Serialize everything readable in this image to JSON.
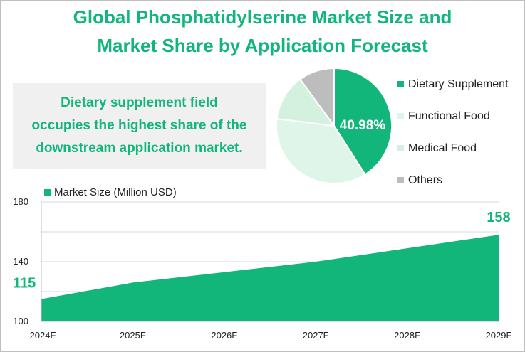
{
  "title": {
    "line1": "Global Phosphatidylserine Market Size and",
    "line2": "Market Share by Application Forecast"
  },
  "callout": {
    "line1": "Dietary supplement field",
    "line2": "occupies the highest share of the",
    "line3": "downstream application market."
  },
  "colors": {
    "accent": "#12b57a",
    "functional_food": "#dff5e9",
    "medical_food": "#d4f0df",
    "others": "#bdbdbd",
    "callout_bg": "#f0f0f0"
  },
  "chart_data": [
    {
      "type": "pie",
      "title": "",
      "labels": [
        "Dietary Supplement",
        "Functional Food",
        "Medical Food",
        "Others"
      ],
      "values": [
        40.98,
        36.0,
        13.0,
        10.02
      ],
      "value_label": "40.98%",
      "colors": [
        "#12b57a",
        "#dff5e9",
        "#d4f0df",
        "#bdbdbd"
      ],
      "legend_position": "right"
    },
    {
      "type": "area",
      "title": "",
      "series": [
        {
          "name": "Market Size (Million USD)",
          "values": [
            115,
            126,
            133,
            140,
            149,
            158
          ]
        }
      ],
      "categories": [
        "2024F",
        "2025F",
        "2026F",
        "2027F",
        "2028F",
        "2029F"
      ],
      "ylim": [
        100,
        180
      ],
      "yticks": [
        100,
        140,
        180
      ],
      "data_labels": {
        "first": "115",
        "last": "158"
      },
      "grid": true,
      "legend_position": "top-left"
    }
  ]
}
